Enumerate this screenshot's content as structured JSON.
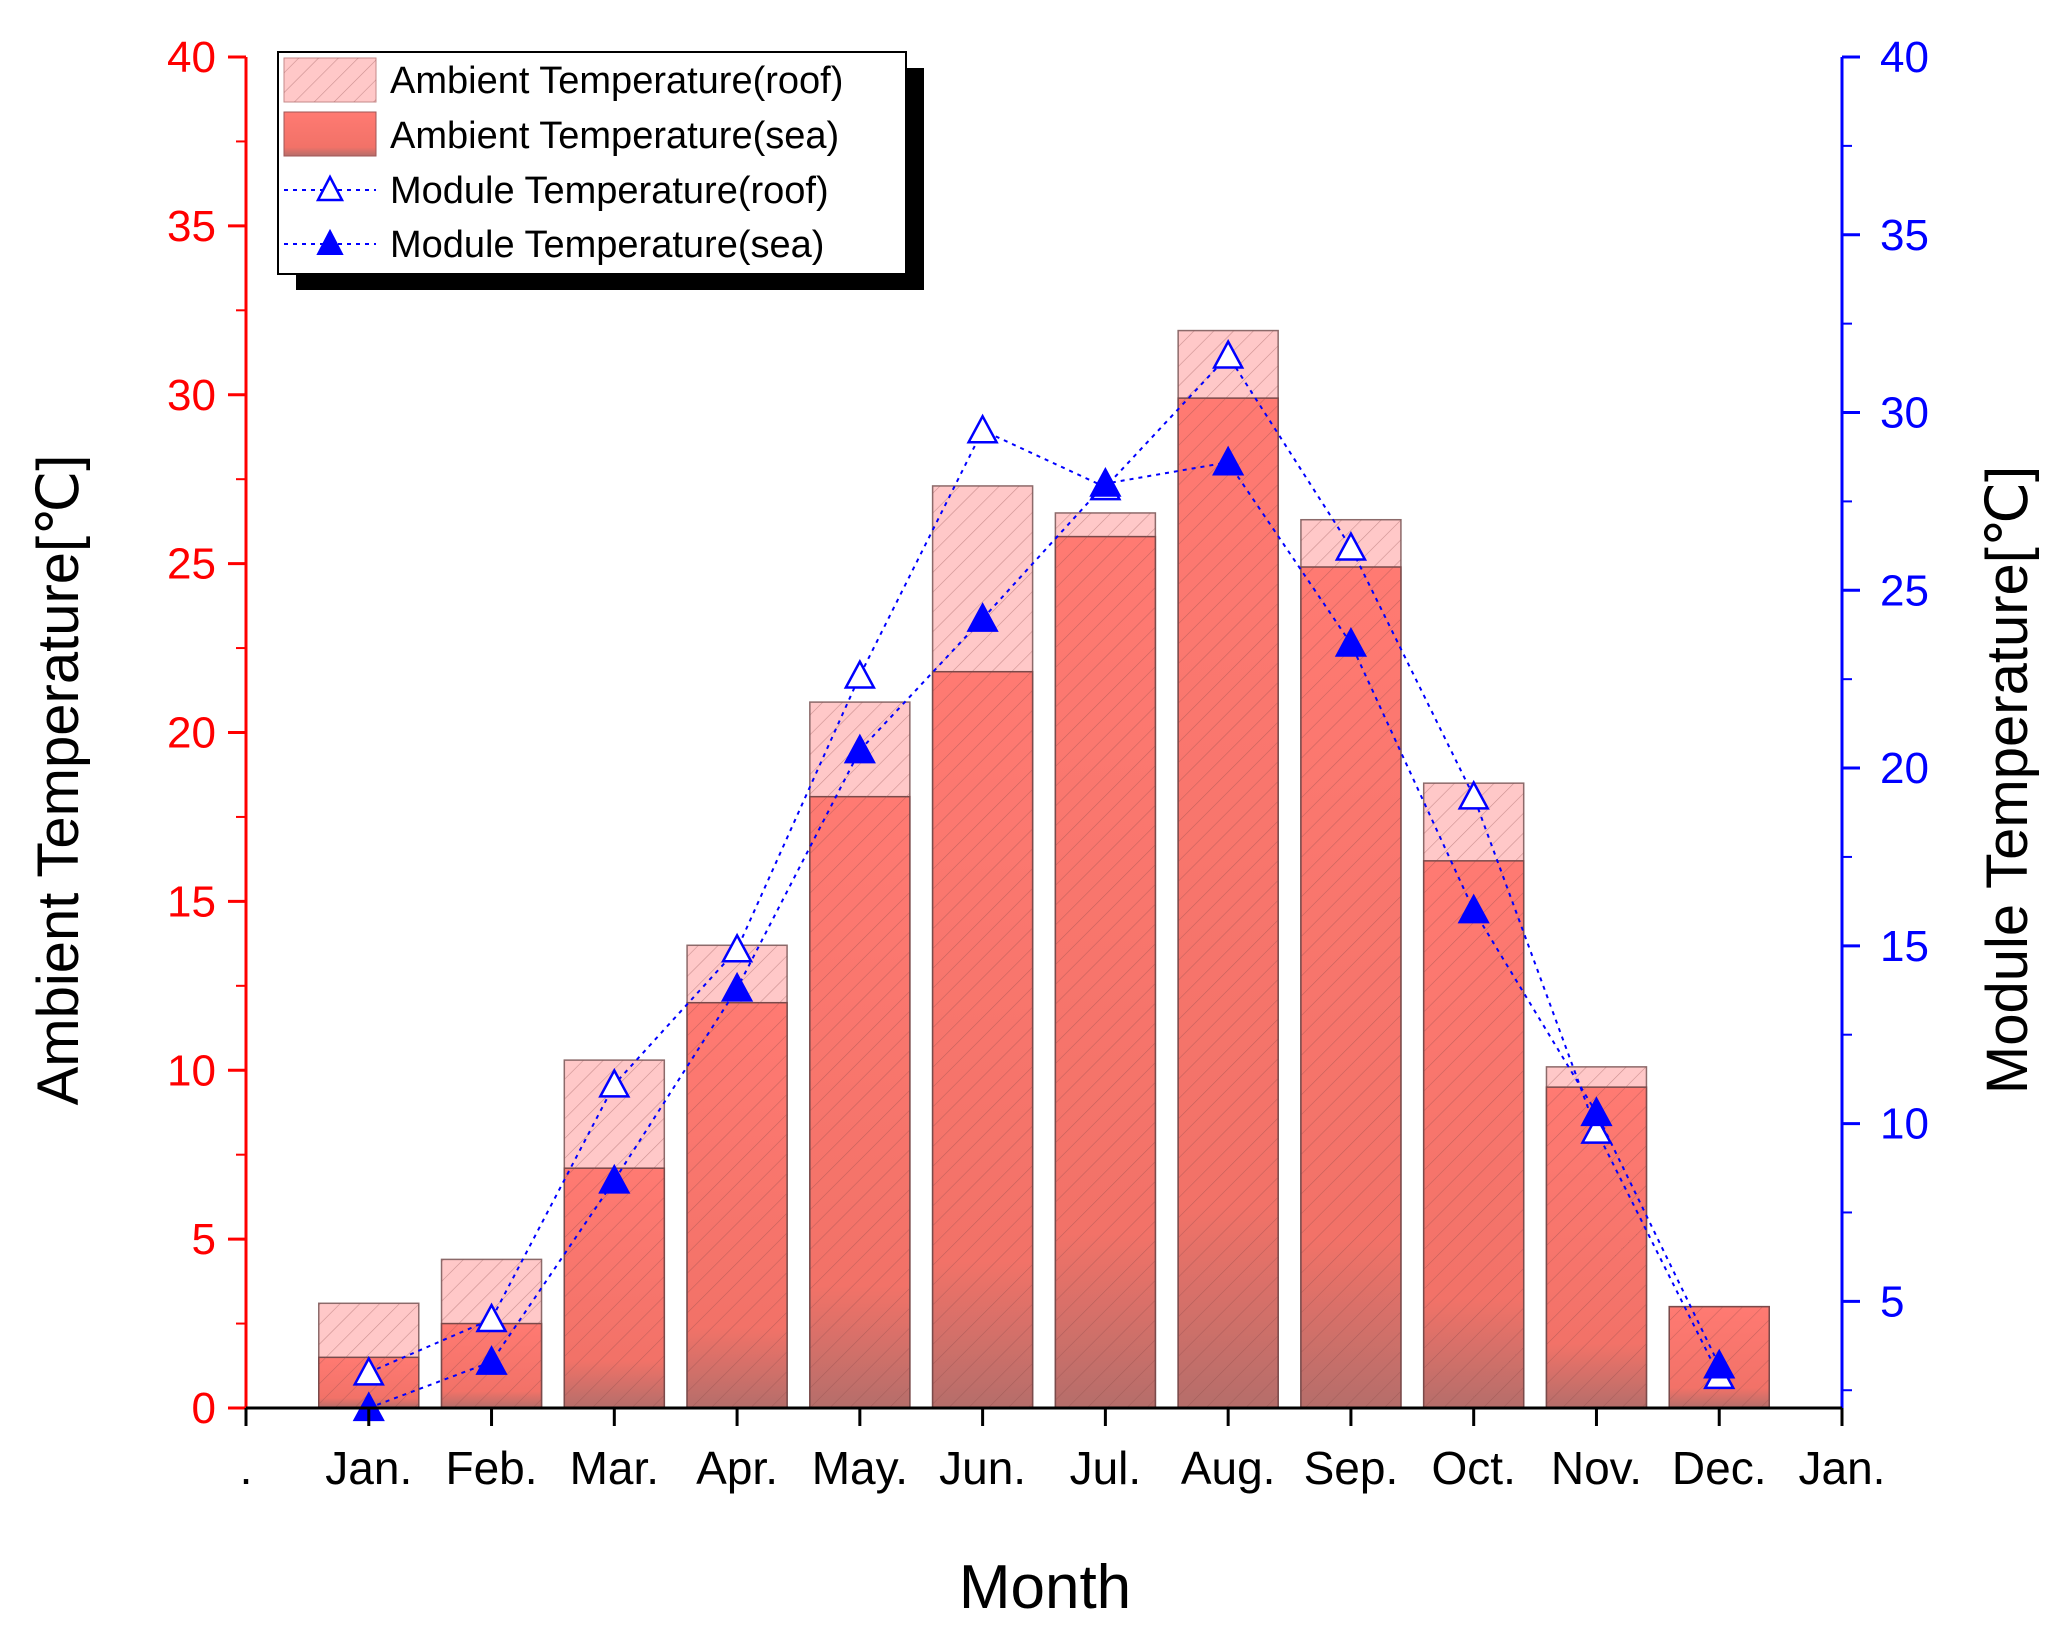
{
  "chart_data": {
    "type": "bar",
    "xlabel": "Month",
    "ylabel_left": "Ambient Temperature[℃]",
    "ylabel_right": "Module Temperature[℃]",
    "x_tick_labels": [
      ".",
      "Jan.",
      "Feb.",
      "Mar.",
      "Apr.",
      "May.",
      "Jun.",
      "Jul.",
      "Aug.",
      "Sep.",
      "Oct.",
      "Nov.",
      "Dec.",
      "Jan."
    ],
    "categories": [
      "Jan.",
      "Feb.",
      "Mar.",
      "Apr.",
      "May.",
      "Jun.",
      "Jul.",
      "Aug.",
      "Sep.",
      "Oct.",
      "Nov.",
      "Dec."
    ],
    "ylim_left": [
      0,
      40
    ],
    "yticks_left": [
      0,
      5,
      10,
      15,
      20,
      25,
      30,
      35,
      40
    ],
    "ylim_right": [
      2,
      40
    ],
    "yticks_right": [
      5,
      10,
      15,
      20,
      25,
      30,
      35,
      40
    ],
    "colors": {
      "left_axis": "#ff0000",
      "right_axis": "#0000ff",
      "roof_bar": "#ffc8c8",
      "sea_bar": "#ff7a72",
      "line": "#0000ff"
    },
    "series": [
      {
        "name": "Ambient Temperature(roof)",
        "kind": "bar",
        "axis": "left",
        "values": [
          3.1,
          4.4,
          10.3,
          13.7,
          20.9,
          27.3,
          26.5,
          31.9,
          26.3,
          18.5,
          10.1,
          3.0
        ]
      },
      {
        "name": "Ambient Temperature(sea)",
        "kind": "bar",
        "axis": "left",
        "values": [
          1.5,
          2.5,
          7.1,
          12.0,
          18.1,
          21.8,
          25.8,
          29.9,
          24.9,
          16.2,
          9.5,
          3.0
        ]
      },
      {
        "name": "Module Temperature(roof)",
        "kind": "line",
        "axis": "right",
        "marker": "open-triangle",
        "values": [
          3.0,
          4.5,
          11.1,
          14.9,
          22.6,
          29.5,
          27.9,
          31.6,
          26.2,
          19.2,
          9.8,
          2.9
        ]
      },
      {
        "name": "Module Temperature(sea)",
        "kind": "line",
        "axis": "right",
        "marker": "filled-triangle",
        "values": [
          2.0,
          3.3,
          8.4,
          13.8,
          20.5,
          24.2,
          28.0,
          28.6,
          23.5,
          16.0,
          10.3,
          3.2
        ]
      }
    ],
    "legend_position": "top-left"
  }
}
